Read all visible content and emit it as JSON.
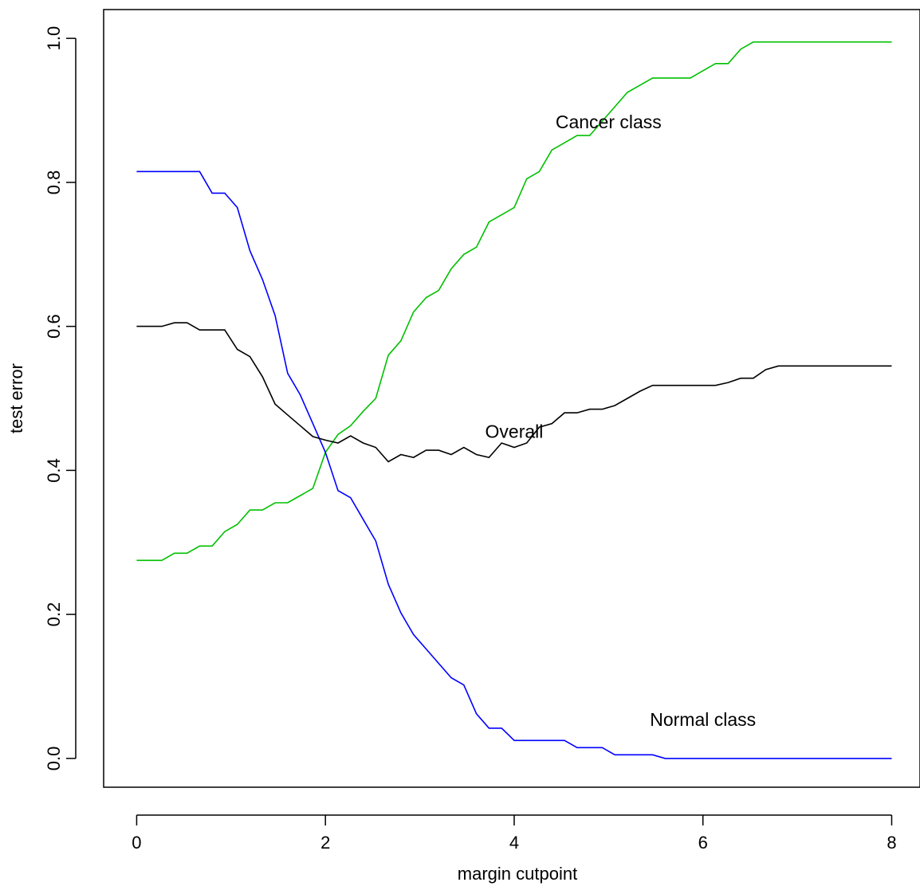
{
  "chart_data": {
    "type": "line",
    "title": "",
    "xlabel": "margin cutpoint",
    "ylabel": "test error",
    "xlim": [
      -0.35,
      8.3
    ],
    "ylim": [
      -0.04,
      1.04
    ],
    "xticks": [
      0,
      2,
      4,
      6,
      8
    ],
    "yticks": [
      0.0,
      0.2,
      0.4,
      0.6,
      0.8,
      1.0
    ],
    "xtick_labels": [
      "0",
      "2",
      "4",
      "6",
      "8"
    ],
    "ytick_labels": [
      "0.0",
      "0.2",
      "0.4",
      "0.6",
      "0.8",
      "1.0"
    ],
    "grid": false,
    "legend": "none",
    "x": [
      0,
      0.1333,
      0.2667,
      0.4,
      0.5333,
      0.6667,
      0.8,
      0.9333,
      1.0667,
      1.2,
      1.3333,
      1.4667,
      1.6,
      1.7333,
      1.8667,
      2.0,
      2.1333,
      2.2667,
      2.4,
      2.5333,
      2.6667,
      2.8,
      2.9333,
      3.0667,
      3.2,
      3.3333,
      3.4667,
      3.6,
      3.7333,
      3.8667,
      4.0,
      4.1333,
      4.2667,
      4.4,
      4.5333,
      4.6667,
      4.8,
      4.9333,
      5.0667,
      5.2,
      5.3333,
      5.4667,
      5.6,
      5.7333,
      5.8667,
      6.0,
      6.1333,
      6.2667,
      6.4,
      6.5333,
      6.6667,
      6.8,
      6.9333,
      7.0667,
      7.2,
      7.3333,
      7.4667,
      7.6,
      7.7333,
      7.8667,
      8.0
    ],
    "series": [
      {
        "name": "Cancer class",
        "color": "#00c000",
        "values": [
          0.275,
          0.275,
          0.275,
          0.285,
          0.285,
          0.295,
          0.295,
          0.315,
          0.325,
          0.345,
          0.345,
          0.355,
          0.355,
          0.365,
          0.375,
          0.425,
          0.45,
          0.462,
          0.482,
          0.5,
          0.56,
          0.58,
          0.62,
          0.64,
          0.65,
          0.68,
          0.7,
          0.71,
          0.745,
          0.755,
          0.765,
          0.805,
          0.815,
          0.845,
          0.855,
          0.865,
          0.865,
          0.885,
          0.905,
          0.925,
          0.935,
          0.945,
          0.945,
          0.945,
          0.945,
          0.955,
          0.965,
          0.965,
          0.985,
          0.995,
          0.995,
          0.995,
          0.995,
          0.995,
          0.995,
          0.995,
          0.995,
          0.995,
          0.995,
          0.995,
          0.995
        ]
      },
      {
        "name": "Normal class",
        "color": "#0000ff",
        "values": [
          0.815,
          0.815,
          0.815,
          0.815,
          0.815,
          0.815,
          0.785,
          0.785,
          0.765,
          0.705,
          0.665,
          0.615,
          0.535,
          0.505,
          0.465,
          0.425,
          0.372,
          0.362,
          0.332,
          0.302,
          0.242,
          0.202,
          0.172,
          0.152,
          0.132,
          0.112,
          0.102,
          0.062,
          0.042,
          0.042,
          0.025,
          0.025,
          0.025,
          0.025,
          0.025,
          0.015,
          0.015,
          0.015,
          0.005,
          0.005,
          0.005,
          0.005,
          0.0,
          0.0,
          0.0,
          0.0,
          0.0,
          0.0,
          0.0,
          0.0,
          0.0,
          0.0,
          0.0,
          0.0,
          0.0,
          0.0,
          0.0,
          0.0,
          0.0,
          0.0,
          0.0
        ]
      },
      {
        "name": "Overall",
        "color": "#000000",
        "values": [
          0.6,
          0.6,
          0.6,
          0.605,
          0.605,
          0.595,
          0.595,
          0.595,
          0.568,
          0.558,
          0.53,
          0.492,
          0.477,
          0.462,
          0.447,
          0.442,
          0.438,
          0.448,
          0.438,
          0.432,
          0.412,
          0.422,
          0.418,
          0.428,
          0.428,
          0.422,
          0.432,
          0.422,
          0.418,
          0.438,
          0.432,
          0.438,
          0.46,
          0.465,
          0.48,
          0.48,
          0.485,
          0.485,
          0.49,
          0.5,
          0.51,
          0.518,
          0.518,
          0.518,
          0.518,
          0.518,
          0.518,
          0.522,
          0.528,
          0.528,
          0.54,
          0.545,
          0.545,
          0.545,
          0.545,
          0.545,
          0.545,
          0.545,
          0.545,
          0.545,
          0.545
        ]
      }
    ],
    "annotations": [
      {
        "text": "Cancer class",
        "x": 5.0,
        "y": 0.875
      },
      {
        "text": "Overall",
        "x": 4.0,
        "y": 0.445
      },
      {
        "text": "Normal class",
        "x": 6.0,
        "y": 0.045
      }
    ]
  }
}
